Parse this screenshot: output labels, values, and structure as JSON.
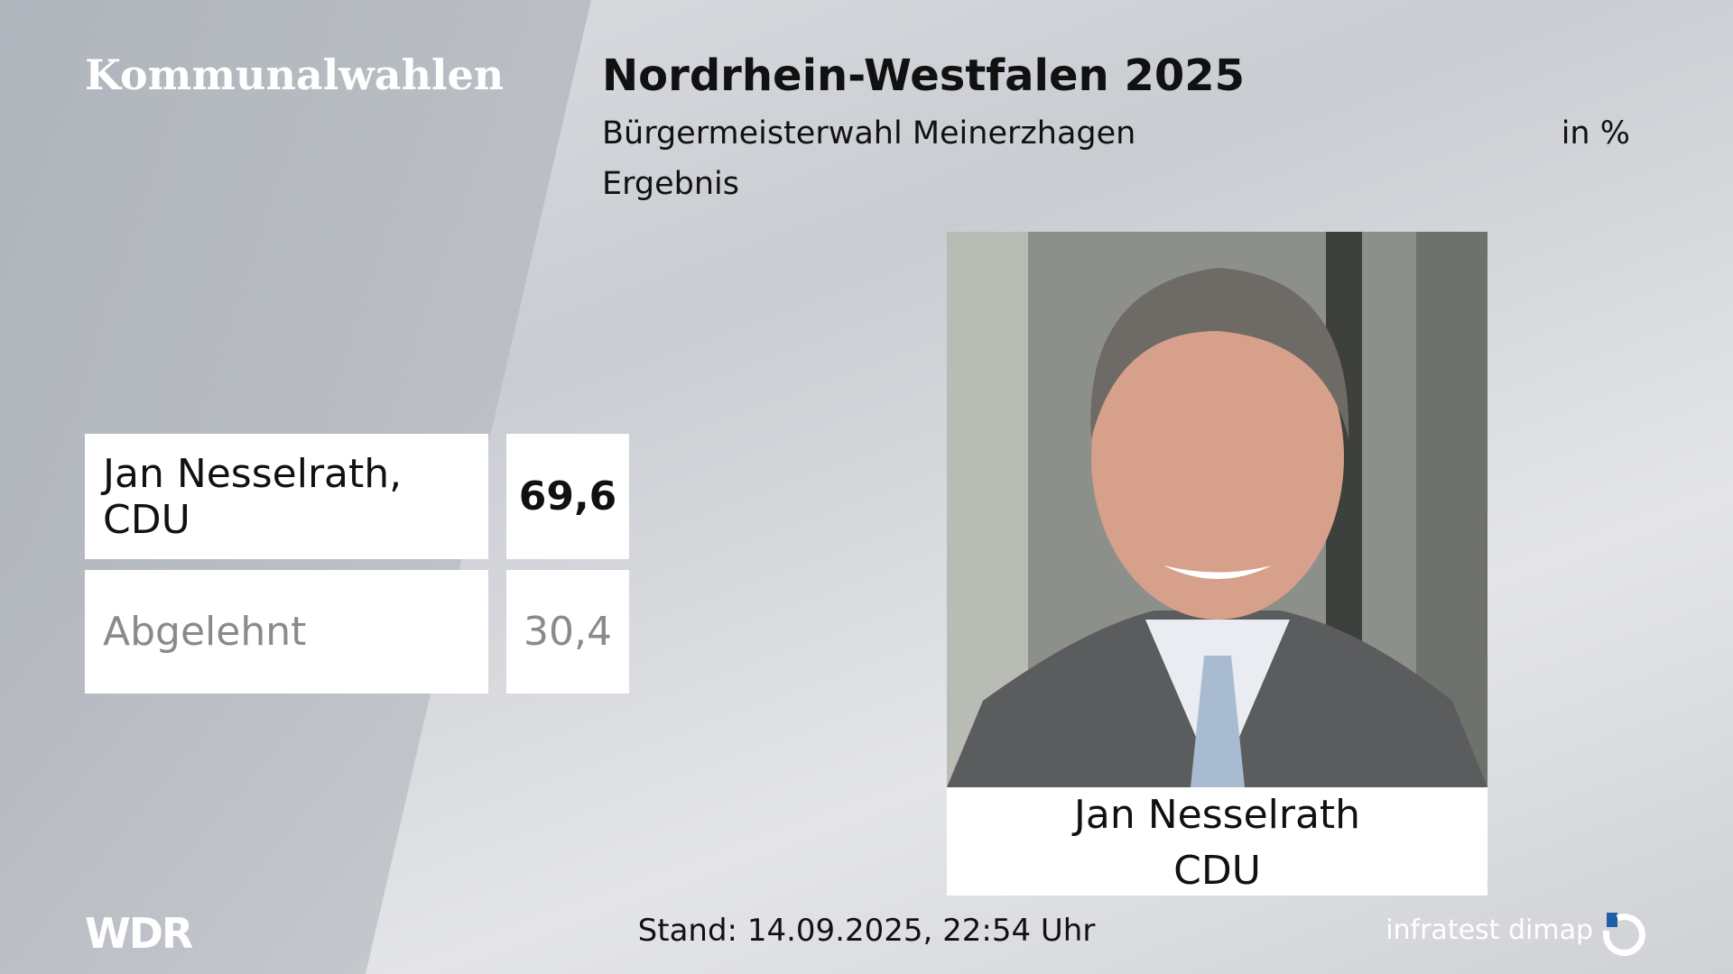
{
  "header": {
    "category": "Kommunalwahlen",
    "title": "Nordrhein-Westfalen 2025",
    "subtitle": "Bürgermeisterwahl Meinerzhagen",
    "unit": "in %",
    "label": "Ergebnis"
  },
  "table": {
    "rows": [
      [
        "Jan Nesselrath, CDU",
        "69,6"
      ],
      [
        "Abgelehnt",
        "30,4"
      ]
    ]
  },
  "candidate": {
    "name": "Jan Nesselrath",
    "party": "CDU"
  },
  "footer": {
    "logo": "WDR",
    "timestamp": "Stand: 14.09.2025, 22:54 Uhr",
    "source": "infratest dimap"
  }
}
